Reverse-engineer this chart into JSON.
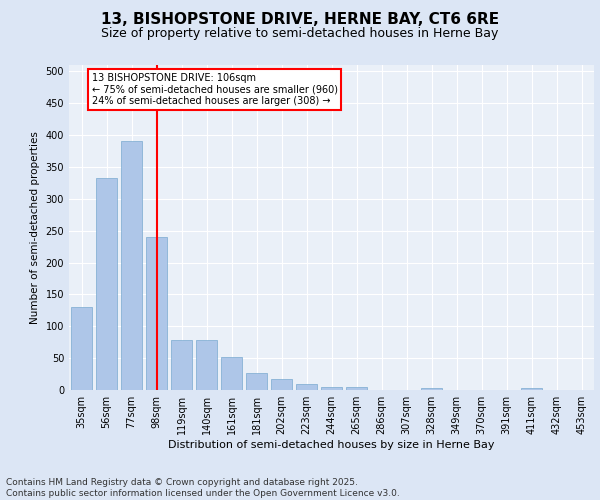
{
  "title_line1": "13, BISHOPSTONE DRIVE, HERNE BAY, CT6 6RE",
  "title_line2": "Size of property relative to semi-detached houses in Herne Bay",
  "xlabel": "Distribution of semi-detached houses by size in Herne Bay",
  "ylabel": "Number of semi-detached properties",
  "categories": [
    "35sqm",
    "56sqm",
    "77sqm",
    "98sqm",
    "119sqm",
    "140sqm",
    "161sqm",
    "181sqm",
    "202sqm",
    "223sqm",
    "244sqm",
    "265sqm",
    "286sqm",
    "307sqm",
    "328sqm",
    "349sqm",
    "370sqm",
    "391sqm",
    "411sqm",
    "432sqm",
    "453sqm"
  ],
  "values": [
    130,
    333,
    390,
    240,
    78,
    78,
    52,
    26,
    18,
    10,
    5,
    5,
    0,
    0,
    3,
    0,
    0,
    0,
    3,
    0,
    0
  ],
  "bar_color": "#aec6e8",
  "bar_edge_color": "#7aaad0",
  "vline_x": 3,
  "vline_color": "red",
  "annotation_text": "13 BISHOPSTONE DRIVE: 106sqm\n← 75% of semi-detached houses are smaller (960)\n24% of semi-detached houses are larger (308) →",
  "annotation_box_color": "white",
  "annotation_box_edge_color": "red",
  "ylim": [
    0,
    510
  ],
  "yticks": [
    0,
    50,
    100,
    150,
    200,
    250,
    300,
    350,
    400,
    450,
    500
  ],
  "footnote": "Contains HM Land Registry data © Crown copyright and database right 2025.\nContains public sector information licensed under the Open Government Licence v3.0.",
  "bg_color": "#dce6f5",
  "plot_bg_color": "#eaf0f8",
  "title_fontsize": 11,
  "subtitle_fontsize": 9,
  "tick_fontsize": 7,
  "ylabel_fontsize": 7.5,
  "xlabel_fontsize": 8,
  "footnote_fontsize": 6.5
}
